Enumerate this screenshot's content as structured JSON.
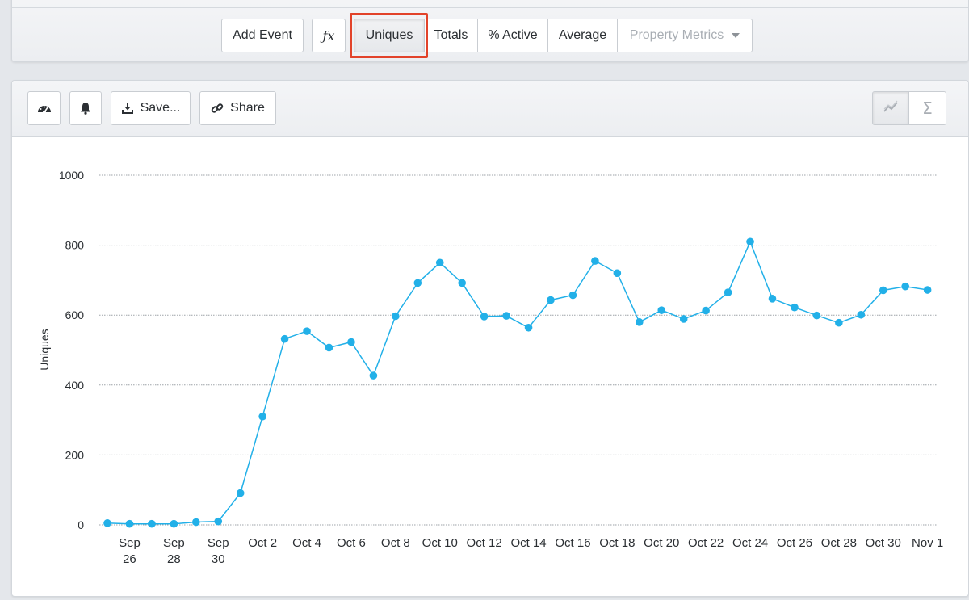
{
  "top_toolbar": {
    "add_event_label": "Add Event",
    "fx_label": "ƒx",
    "metric_tabs": [
      {
        "label": "Uniques",
        "active": true
      },
      {
        "label": "Totals",
        "active": false
      },
      {
        "label": "% Active",
        "active": false
      },
      {
        "label": "Average",
        "active": false
      }
    ],
    "property_metrics_label": "Property Metrics"
  },
  "chart_toolbar": {
    "dashboard_icon": "dashboard-gauge-icon",
    "alert_icon": "bell-icon",
    "save_label": "Save...",
    "share_label": "Share",
    "view_toggle": [
      "line-chart-icon",
      "sigma-icon"
    ]
  },
  "colors": {
    "series": "#22b0e8",
    "highlight": "#e2432a"
  },
  "chart_data": {
    "type": "line",
    "title": "",
    "xlabel": "",
    "ylabel": "Uniques",
    "ylim": [
      0,
      1000
    ],
    "yticks": [
      0,
      200,
      400,
      600,
      800,
      1000
    ],
    "grid": true,
    "x_tick_labels": [
      {
        "index": 1,
        "label": "Sep 26"
      },
      {
        "index": 3,
        "label": "Sep 28"
      },
      {
        "index": 5,
        "label": "Sep 30"
      },
      {
        "index": 7,
        "label": "Oct 2"
      },
      {
        "index": 9,
        "label": "Oct 4"
      },
      {
        "index": 11,
        "label": "Oct 6"
      },
      {
        "index": 13,
        "label": "Oct 8"
      },
      {
        "index": 15,
        "label": "Oct 10"
      },
      {
        "index": 17,
        "label": "Oct 12"
      },
      {
        "index": 19,
        "label": "Oct 14"
      },
      {
        "index": 21,
        "label": "Oct 16"
      },
      {
        "index": 23,
        "label": "Oct 18"
      },
      {
        "index": 25,
        "label": "Oct 20"
      },
      {
        "index": 27,
        "label": "Oct 22"
      },
      {
        "index": 29,
        "label": "Oct 24"
      },
      {
        "index": 31,
        "label": "Oct 26"
      },
      {
        "index": 33,
        "label": "Oct 28"
      },
      {
        "index": 35,
        "label": "Oct 30"
      },
      {
        "index": 37,
        "label": "Nov 1"
      }
    ],
    "series": [
      {
        "values": [
          5,
          3,
          3,
          3,
          8,
          10,
          91,
          310,
          532,
          554,
          507,
          523,
          427,
          597,
          692,
          750,
          692,
          596,
          598,
          564,
          643,
          657,
          755,
          720,
          580,
          614,
          589,
          613,
          665,
          810,
          647,
          622,
          599,
          578,
          601,
          671,
          682,
          672
        ]
      }
    ]
  }
}
